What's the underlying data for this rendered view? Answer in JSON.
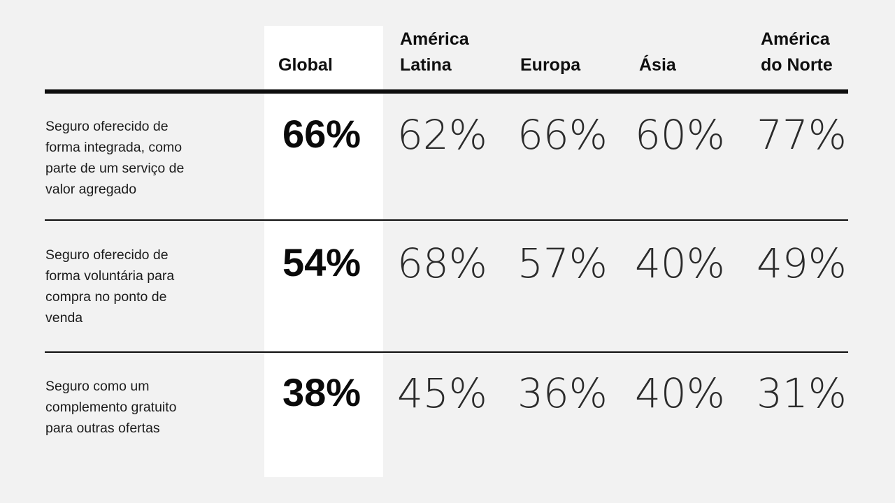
{
  "colors": {
    "background": "#f2f2f2",
    "highlight_column": "#ffffff",
    "text": "#111111",
    "rule": "#0d0d0d"
  },
  "header": {
    "global": "Global",
    "america_latina": "América\nLatina",
    "europa": "Europa",
    "asia": "Ásia",
    "america_do_norte": "América\ndo Norte"
  },
  "rows": [
    {
      "label": "Seguro oferecido de\nforma integrada, como\nparte de um serviço de\nvalor agregado",
      "global": "66%",
      "america_latina": "62%",
      "europa": "66%",
      "asia": "60%",
      "america_do_norte": "77%"
    },
    {
      "label": "Seguro oferecido de\nforma voluntária para\ncompra no ponto de\nvenda",
      "global": "54%",
      "america_latina": "68%",
      "europa": "57%",
      "asia": "40%",
      "america_do_norte": "49%"
    },
    {
      "label": "Seguro como um\ncomplemento gratuito\npara outras ofertas",
      "global": "38%",
      "america_latina": "45%",
      "europa": "36%",
      "asia": "40%",
      "america_do_norte": "31%"
    }
  ],
  "chart_data": {
    "type": "table",
    "unit": "%",
    "categories": [
      "Seguro oferecido de forma integrada, como parte de um serviço de valor agregado",
      "Seguro oferecido de forma voluntária para compra no ponto de venda",
      "Seguro como um complemento gratuito para outras ofertas"
    ],
    "series": [
      {
        "name": "Global",
        "values": [
          66,
          54,
          38
        ],
        "highlighted": true
      },
      {
        "name": "América Latina",
        "values": [
          62,
          68,
          45
        ]
      },
      {
        "name": "Europa",
        "values": [
          66,
          57,
          36
        ]
      },
      {
        "name": "Ásia",
        "values": [
          60,
          40,
          40
        ]
      },
      {
        "name": "América do Norte",
        "values": [
          77,
          49,
          31
        ]
      }
    ],
    "layout": {
      "highlighted_column": "Global",
      "grid": "horizontal rules between rows",
      "legend": "none"
    }
  }
}
